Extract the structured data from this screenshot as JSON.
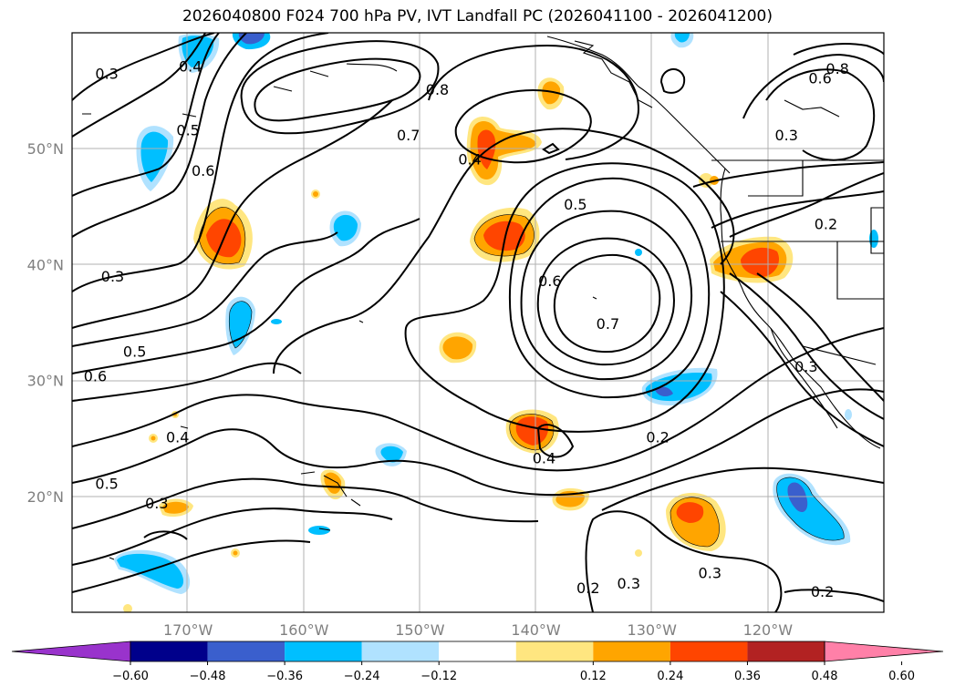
{
  "title": "2026040800 F024 700 hPa PV, IVT Landfall PC (2026041100 - 2026041200)",
  "map": {
    "lon_range": [
      -180,
      -110
    ],
    "lat_range": [
      10,
      60
    ],
    "lon_ticks": [
      {
        "value": -170,
        "label": "170°W"
      },
      {
        "value": -160,
        "label": "160°W"
      },
      {
        "value": -150,
        "label": "150°W"
      },
      {
        "value": -140,
        "label": "140°W"
      },
      {
        "value": -130,
        "label": "130°W"
      },
      {
        "value": -120,
        "label": "120°W"
      }
    ],
    "lat_ticks": [
      {
        "value": 20,
        "label": "20°N"
      },
      {
        "value": 30,
        "label": "30°N"
      },
      {
        "value": 40,
        "label": "40°N"
      },
      {
        "value": 50,
        "label": "50°N"
      }
    ],
    "grid": true,
    "contour_labels": [
      {
        "text": "0.3",
        "lon": -177,
        "lat": 56.2
      },
      {
        "text": "0.4",
        "lon": -169.8,
        "lat": 56.8
      },
      {
        "text": "0.8",
        "lon": -148.5,
        "lat": 54.8
      },
      {
        "text": "0.5",
        "lon": -170,
        "lat": 51.3
      },
      {
        "text": "0.6",
        "lon": -168.7,
        "lat": 47.8
      },
      {
        "text": "0.7",
        "lon": -151,
        "lat": 50.9
      },
      {
        "text": "0.4",
        "lon": -145.7,
        "lat": 48.8
      },
      {
        "text": "0.5",
        "lon": -136.6,
        "lat": 44.9
      },
      {
        "text": "0.2",
        "lon": -115,
        "lat": 43.2
      },
      {
        "text": "0.8",
        "lon": -114,
        "lat": 56.6
      },
      {
        "text": "0.6",
        "lon": -115.5,
        "lat": 55.8
      },
      {
        "text": "0.3",
        "lon": -118.4,
        "lat": 50.9
      },
      {
        "text": "0.3",
        "lon": -176.5,
        "lat": 38.7
      },
      {
        "text": "0.6",
        "lon": -138.8,
        "lat": 38.3
      },
      {
        "text": "0.7",
        "lon": -133.8,
        "lat": 34.6
      },
      {
        "text": "0.5",
        "lon": -174.6,
        "lat": 32.2
      },
      {
        "text": "0.6",
        "lon": -178,
        "lat": 30.1
      },
      {
        "text": "0.3",
        "lon": -116.7,
        "lat": 30.9
      },
      {
        "text": "0.4",
        "lon": -170.9,
        "lat": 24.8
      },
      {
        "text": "0.2",
        "lon": -129.5,
        "lat": 24.8
      },
      {
        "text": "0.4",
        "lon": -139.3,
        "lat": 23.0
      },
      {
        "text": "0.5",
        "lon": -177,
        "lat": 20.8
      },
      {
        "text": "0.3",
        "lon": -172.7,
        "lat": 19.1
      },
      {
        "text": "0.2",
        "lon": -135.5,
        "lat": 11.8
      },
      {
        "text": "0.3",
        "lon": -132,
        "lat": 12.2
      },
      {
        "text": "0.3",
        "lon": -125,
        "lat": 13.1
      },
      {
        "text": "0.2",
        "lon": -115.3,
        "lat": 11.5
      }
    ]
  },
  "colorbar": {
    "levels": [
      "−0.60",
      "−0.48",
      "−0.36",
      "−0.24",
      "−0.12",
      "0.12",
      "0.24",
      "0.36",
      "0.48",
      "0.60"
    ],
    "colors": [
      "#9933cc",
      "#00008b",
      "#3a5fcd",
      "#00bfff",
      "#b0e2ff",
      "#ffffff",
      "#ffe680",
      "#ffa500",
      "#ff4500",
      "#b22222",
      "#ff80a8"
    ]
  },
  "colors": {
    "positive_1": "#ffe680",
    "positive_2": "#ffa500",
    "positive_3": "#ff4500",
    "negative_1": "#b0e2ff",
    "negative_2": "#00bfff",
    "negative_3": "#3a5fcd",
    "grid": "#b0b0b0",
    "tick_label": "#7f7f7f"
  }
}
